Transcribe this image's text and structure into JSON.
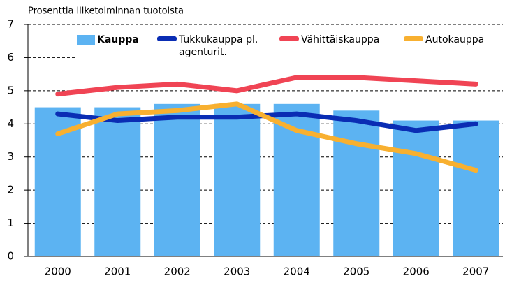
{
  "chart_data": {
    "type": "bar",
    "title": "Prosenttia liiketoiminnan tuotoista",
    "categories": [
      "2000",
      "2001",
      "2002",
      "2003",
      "2004",
      "2005",
      "2006",
      "2007"
    ],
    "ylim": [
      0,
      7
    ],
    "yticks": [
      0,
      1,
      2,
      3,
      4,
      5,
      6,
      7
    ],
    "grid": true,
    "series": [
      {
        "name": "Kauppa",
        "type": "bar",
        "color": "#5cb3f2",
        "values": [
          4.5,
          4.5,
          4.6,
          4.6,
          4.6,
          4.4,
          4.1,
          4.1
        ]
      },
      {
        "name": "Tukkukauppa pl. agenturit.",
        "type": "line",
        "color": "#0a2db4",
        "values": [
          4.3,
          4.1,
          4.2,
          4.2,
          4.3,
          4.1,
          3.8,
          4.0
        ]
      },
      {
        "name": "Vähittäiskauppa",
        "type": "line",
        "color": "#f04454",
        "values": [
          4.9,
          5.1,
          5.2,
          5.0,
          5.4,
          5.4,
          5.3,
          5.2
        ]
      },
      {
        "name": "Autokauppa",
        "type": "line",
        "color": "#f8b030",
        "values": [
          3.7,
          4.3,
          4.4,
          4.6,
          3.8,
          3.4,
          3.1,
          2.6
        ]
      }
    ]
  }
}
